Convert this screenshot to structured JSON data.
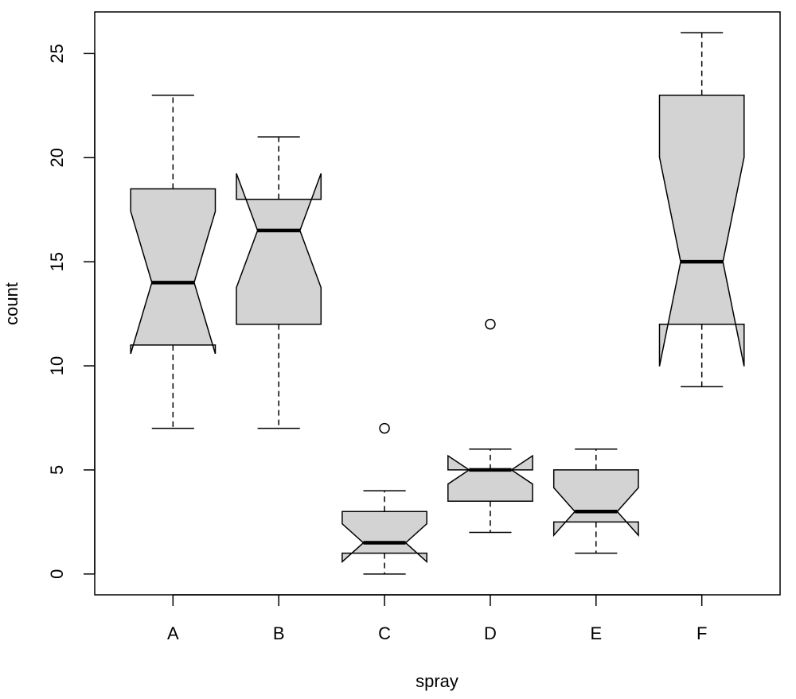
{
  "chart_data": {
    "type": "boxplot",
    "notched": true,
    "xlabel": "spray",
    "ylabel": "count",
    "categories": [
      "A",
      "B",
      "C",
      "D",
      "E",
      "F"
    ],
    "ylim": [
      -1,
      27
    ],
    "yticks": [
      0,
      5,
      10,
      15,
      20,
      25
    ],
    "ytick_labels": [
      "0",
      "5",
      "10",
      "15",
      "20",
      "25"
    ],
    "grid": false,
    "fill_color": "#d3d3d3",
    "line_color": "#000000",
    "boxes": [
      {
        "category": "A",
        "lower_whisker": 7,
        "q1": 11,
        "median": 14,
        "q3": 18.5,
        "upper_whisker": 23,
        "notch_low": 10.58,
        "notch_high": 17.42,
        "outliers": []
      },
      {
        "category": "B",
        "lower_whisker": 7,
        "q1": 12,
        "median": 16.5,
        "q3": 18,
        "upper_whisker": 21,
        "notch_low": 13.76,
        "notch_high": 19.24,
        "outliers": []
      },
      {
        "category": "C",
        "lower_whisker": 0,
        "q1": 1,
        "median": 1.5,
        "q3": 3,
        "upper_whisker": 4,
        "notch_low": 0.59,
        "notch_high": 2.41,
        "outliers": [
          7
        ]
      },
      {
        "category": "D",
        "lower_whisker": 2,
        "q1": 3.5,
        "median": 5,
        "q3": 5,
        "upper_whisker": 6,
        "notch_low": 4.32,
        "notch_high": 5.68,
        "outliers": [
          12
        ]
      },
      {
        "category": "E",
        "lower_whisker": 1,
        "q1": 2.5,
        "median": 3,
        "q3": 5,
        "upper_whisker": 6,
        "notch_low": 1.86,
        "notch_high": 4.14,
        "outliers": []
      },
      {
        "category": "F",
        "lower_whisker": 9,
        "q1": 12,
        "median": 15,
        "q3": 23,
        "upper_whisker": 26,
        "notch_low": 9.98,
        "notch_high": 20.02,
        "outliers": []
      }
    ]
  }
}
